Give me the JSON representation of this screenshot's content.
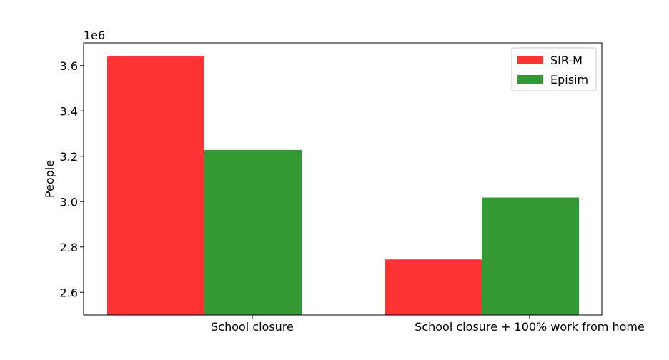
{
  "chart_data": {
    "type": "bar",
    "categories": [
      "School closure",
      "School closure + 100% work from home"
    ],
    "series": [
      {
        "name": "SIR-M",
        "values": [
          3640000,
          2745000
        ],
        "color": "#ff3333"
      },
      {
        "name": "Episim",
        "values": [
          3228000,
          3018000
        ],
        "color": "#339933"
      }
    ],
    "xlabel": "",
    "ylabel": "People",
    "ylim": [
      2500000,
      3700000
    ],
    "yticks": [
      2600000,
      2800000,
      3000000,
      3200000,
      3400000,
      3600000
    ],
    "ytick_labels": [
      "2.6",
      "2.8",
      "3.0",
      "3.2",
      "3.4",
      "3.6"
    ],
    "offset_label": "1e6",
    "legend_position": "top-right",
    "grid": false
  }
}
